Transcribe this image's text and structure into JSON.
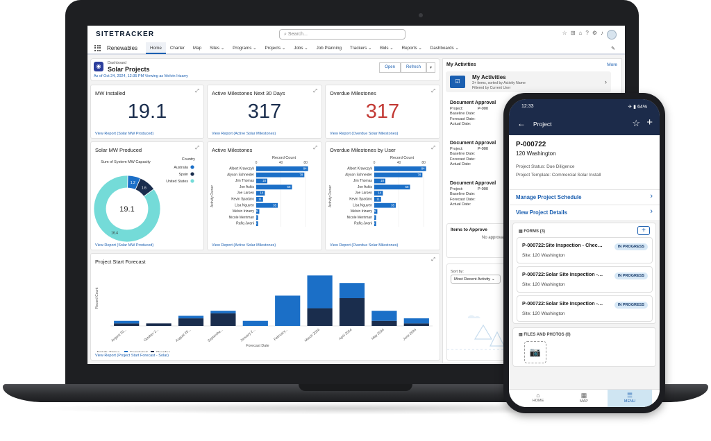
{
  "header": {
    "logo": "SITETRACKER",
    "search_placeholder": "Search..."
  },
  "nav": {
    "app_name": "Renewables",
    "items": [
      "Home",
      "Charter",
      "Map",
      "Sites",
      "Programs",
      "Projects",
      "Jobs",
      "Job Planning",
      "Trackers",
      "Bids",
      "Reports",
      "Dashboards"
    ],
    "active": "Home"
  },
  "dashboard": {
    "label": "Dashboard",
    "title": "Solar Projects",
    "subtitle": "As of Oct 24, 2024, 12:35 PM Viewing as Melvin Irizarry",
    "open_btn": "Open",
    "refresh_btn": "Refresh"
  },
  "cards": {
    "mw_installed": {
      "title": "MW Installed",
      "value": "19.1",
      "link": "View Report (Solar MW Produced)"
    },
    "active_next30": {
      "title": "Active Milestones Next 30 Days",
      "value": "317",
      "link": "View Report (Active Solar Milestones)"
    },
    "overdue": {
      "title": "Overdue Milestones",
      "value": "317",
      "link": "View Report (Overdue Solar Milestones)"
    },
    "solar_mw": {
      "title": "Solar MW Produced",
      "link": "View Report (Solar MW Produced)"
    },
    "active_ms": {
      "title": "Active Milestones",
      "link": "View Report (Active Solar Milestones)"
    },
    "overdue_user": {
      "title": "Overdue Milestones by User",
      "link": "View Report (Overdue Solar Milestones)"
    },
    "forecast": {
      "title": "Project Start Forecast",
      "link": "View Report (Project Start Forecast - Solar)"
    }
  },
  "chart_data": [
    {
      "type": "pie",
      "title": "Sum of System MW Capacity",
      "center_label": "19.1",
      "legend_title": "Country",
      "labels": [
        "Australia",
        "Spain",
        "United States"
      ],
      "values": [
        1.2,
        1.6,
        16.4
      ],
      "colors": [
        "#1b6fc7",
        "#1a2d4d",
        "#74dbd8"
      ]
    },
    {
      "type": "bar",
      "orientation": "horizontal",
      "xlabel": "Record Count",
      "ylabel": "Activity Owner",
      "xticks": [
        0,
        40,
        80
      ],
      "xlim": [
        0,
        90
      ],
      "categories": [
        "Albert Krawczyk",
        "Alyson Schneider",
        "Jim Thomas",
        "Joe Askis",
        "Joe Larsen",
        "Kevin Spadaro",
        "Lisa Nguyen",
        "Melvin Irizarry",
        "Nicole Merriman",
        "Rafiq Jwani"
      ],
      "values": [
        84,
        78,
        18,
        58,
        14,
        11,
        35,
        5,
        3,
        3
      ],
      "color": "#1b6fc7"
    },
    {
      "type": "bar",
      "orientation": "horizontal",
      "xlabel": "Record Count",
      "ylabel": "Activity Owner",
      "xticks": [
        0,
        40,
        80
      ],
      "xlim": [
        0,
        90
      ],
      "categories": [
        "Albert Krawczyk",
        "Alyson Schneider",
        "Jim Thomas",
        "Joe Askis",
        "Joe Larsen",
        "Kevin Spadaro",
        "Lisa Nguyen",
        "Melvin Irizarry",
        "Nicole Merriman",
        "Rafiq Jwani"
      ],
      "values": [
        84,
        78,
        18,
        58,
        14,
        11,
        35,
        5,
        3,
        3
      ],
      "color": "#1b6fc7"
    },
    {
      "type": "bar",
      "stacked": true,
      "xlabel": "Forecast Date",
      "ylabel": "Record Count",
      "legend_title": "Activity Status",
      "categories": [
        "August 20...",
        "October 2...",
        "August 20...",
        "Septembe...",
        "January 2...",
        "February...",
        "March 2024",
        "April 2024",
        "May 2024",
        "June 2024"
      ],
      "series": [
        {
          "name": "Completed",
          "color": "#1b6fc7",
          "values": [
            1,
            0,
            1,
            1,
            2,
            12,
            13,
            6,
            4,
            2
          ]
        },
        {
          "name": "Overdue",
          "color": "#1a2d4d",
          "values": [
            1,
            1,
            3,
            5,
            0,
            0,
            7,
            11,
            2,
            1
          ]
        }
      ],
      "ylim": [
        0,
        22
      ]
    }
  ],
  "activities": {
    "title": "My Activities",
    "more": "More",
    "sub_title": "My Activities",
    "sub_info": "3+ items, sorted by Activity Name",
    "sub_info2": "Filtered by Current User",
    "doc_title": "Document Approval",
    "fields": [
      "Project:",
      "Baseline Date:",
      "Forecast Date:",
      "Actual Date:"
    ],
    "doc_project": "P-000",
    "items_title": "Items to Approve",
    "items_text": "No approval requests",
    "sort_label": "Sort by:",
    "sort_value": "Most Recent Activity"
  },
  "phone": {
    "time": "12:33",
    "battery": "64%",
    "title": "Project",
    "project_id": "P-000722",
    "address": "120 Washington",
    "status": "Project Status: Due Diligence",
    "template": "Project Template: Commercial Solar Install",
    "link1": "Manage Project Schedule",
    "link2": "View Project Details",
    "forms_title": "FORMS (3)",
    "forms": [
      {
        "name": "P-000722:Site Inspection - Checklist",
        "site": "Site: 120 Washington",
        "status": "IN PROGRESS"
      },
      {
        "name": "P-000722:Solar Site Inspection - Initial",
        "site": "Site: 120 Washington",
        "status": "IN PROGRESS"
      },
      {
        "name": "P-000722:Solar Site Inspection - Final",
        "site": "Site: 120 Washington",
        "status": "IN PROGRESS"
      }
    ],
    "files_title": "FILES AND PHOTOS (0)",
    "tabs": [
      "HOME",
      "MAP",
      "MENU"
    ]
  }
}
